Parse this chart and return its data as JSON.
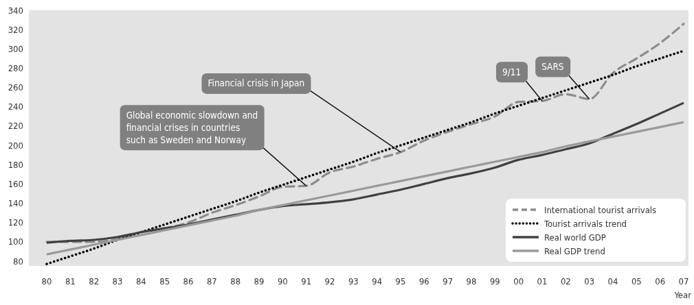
{
  "chart_data": {
    "type": "line",
    "xlabel": "Year",
    "categories": [
      "80",
      "81",
      "82",
      "83",
      "84",
      "85",
      "86",
      "87",
      "88",
      "89",
      "90",
      "91",
      "92",
      "93",
      "94",
      "95",
      "96",
      "97",
      "98",
      "99",
      "00",
      "01",
      "02",
      "03",
      "04",
      "05",
      "06",
      "07"
    ],
    "ylim": [
      75,
      340
    ],
    "yticks": [
      80,
      100,
      120,
      140,
      160,
      180,
      200,
      220,
      240,
      260,
      280,
      300,
      320,
      340
    ],
    "grid": false,
    "legend": "bottom right",
    "series": [
      {
        "name": "International tourist arrivals",
        "color": "#8c8c8c",
        "line_style": "dashed",
        "values": [
          100,
          100,
          100,
          103,
          110,
          114,
          120,
          130,
          138,
          147,
          157,
          158,
          172,
          178,
          186,
          193,
          205,
          214,
          222,
          230,
          245,
          246,
          253,
          248,
          275,
          290,
          306,
          326
        ]
      },
      {
        "name": "Tourist arrivals trend",
        "color": "#000000",
        "line_style": "dotted",
        "values": [
          77,
          85,
          93,
          102,
          110,
          118,
          126,
          134,
          142,
          151,
          159,
          167,
          175,
          183,
          192,
          200,
          208,
          216,
          224,
          233,
          241,
          249,
          257,
          265,
          273,
          282,
          290,
          298
        ]
      },
      {
        "name": "Real world GDP",
        "color": "#404040",
        "line_style": "solid",
        "values": [
          99,
          101,
          102,
          105,
          110,
          114,
          118,
          123,
          128,
          133,
          137,
          139,
          141,
          144,
          149,
          154,
          160,
          166,
          171,
          177,
          185,
          190,
          196,
          202,
          212,
          222,
          233,
          244
        ]
      },
      {
        "name": "Real GDP trend",
        "color": "#999999",
        "line_style": "solid",
        "values": [
          87,
          92,
          97,
          102,
          107,
          112,
          117,
          122,
          127,
          133,
          138,
          143,
          148,
          153,
          158,
          163,
          168,
          173,
          178,
          183,
          188,
          193,
          199,
          204,
          209,
          214,
          219,
          224
        ]
      }
    ],
    "annotations": [
      {
        "text": "Global economic slowdown and\nfinancial crises in countries\nsuch as Sweden and Norway",
        "x": "91",
        "y": 158
      },
      {
        "text": "Financial crisis in Japan",
        "x": "95",
        "y": 193
      },
      {
        "text": "9/11",
        "x": "01",
        "y": 246
      },
      {
        "text": "SARS",
        "x": "03",
        "y": 248
      }
    ]
  }
}
